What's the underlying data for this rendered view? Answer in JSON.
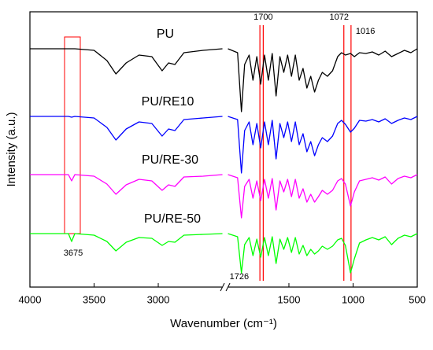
{
  "chart_data": {
    "type": "line",
    "xlabel": "Wavenumber (cm⁻¹)",
    "ylabel": "Intensity (a.u.)",
    "xlim": [
      4000,
      500
    ],
    "xbreak": [
      2500,
      1975
    ],
    "xticks": [
      4000,
      3500,
      3000,
      1500,
      1000,
      500
    ],
    "ylim": [
      0,
      350
    ],
    "x": [
      4000,
      3800,
      3700,
      3675,
      3650,
      3500,
      3400,
      3330,
      3250,
      3150,
      3050,
      2970,
      2920,
      2870,
      2800,
      2650,
      2500,
      1975,
      1900,
      1870,
      1845,
      1810,
      1780,
      1750,
      1720,
      1690,
      1660,
      1630,
      1600,
      1570,
      1540,
      1510,
      1480,
      1450,
      1420,
      1390,
      1360,
      1330,
      1300,
      1270,
      1240,
      1200,
      1160,
      1120,
      1090,
      1060,
      1020,
      990,
      950,
      900,
      850,
      800,
      750,
      700,
      650,
      600,
      550,
      500
    ],
    "series": [
      {
        "name": "PU",
        "color": "#000000",
        "values": [
          303,
          303,
          303,
          303,
          303,
          301,
          288,
          271,
          285,
          295,
          293,
          275,
          285,
          283,
          298,
          301,
          303,
          303,
          298,
          223,
          283,
          295,
          263,
          293,
          258,
          295,
          263,
          297,
          243,
          293,
          273,
          295,
          268,
          295,
          263,
          278,
          253,
          268,
          248,
          263,
          273,
          268,
          275,
          293,
          298,
          295,
          297,
          293,
          298,
          297,
          299,
          295,
          300,
          293,
          297,
          301,
          298,
          303
        ]
      },
      {
        "name": "PU/RE10",
        "color": "#0000ff",
        "values": [
          217,
          217,
          217,
          216,
          217,
          215,
          203,
          187,
          201,
          210,
          208,
          192,
          201,
          199,
          213,
          215,
          217,
          217,
          213,
          145,
          199,
          210,
          181,
          208,
          177,
          210,
          181,
          212,
          163,
          208,
          190,
          210,
          185,
          210,
          181,
          195,
          172,
          185,
          167,
          181,
          190,
          185,
          192,
          208,
          212,
          207,
          197,
          202,
          212,
          211,
          213,
          210,
          214,
          208,
          212,
          215,
          213,
          217
        ]
      },
      {
        "name": "PU/RE-30",
        "color": "#ff00ff",
        "values": [
          143,
          143,
          143,
          135,
          143,
          141,
          131,
          118,
          130,
          137,
          135,
          123,
          130,
          128,
          140,
          141,
          143,
          143,
          139,
          88,
          128,
          137,
          113,
          135,
          110,
          137,
          113,
          138,
          98,
          135,
          121,
          137,
          115,
          137,
          113,
          125,
          108,
          118,
          108,
          115,
          123,
          118,
          123,
          135,
          138,
          131,
          103,
          121,
          135,
          137,
          139,
          136,
          140,
          131,
          138,
          141,
          139,
          143
        ]
      },
      {
        "name": "PU/RE-50",
        "color": "#00ff00",
        "values": [
          68,
          68,
          68,
          58,
          68,
          66,
          58,
          46,
          57,
          63,
          62,
          53,
          58,
          57,
          66,
          67,
          68,
          68,
          64,
          18,
          54,
          63,
          40,
          61,
          38,
          63,
          40,
          64,
          30,
          61,
          48,
          63,
          44,
          63,
          42,
          53,
          40,
          48,
          42,
          46,
          52,
          48,
          52,
          60,
          62,
          53,
          18,
          36,
          56,
          60,
          63,
          60,
          64,
          54,
          62,
          66,
          64,
          68
        ]
      }
    ],
    "vlines": [
      1726,
      1700,
      1072,
      1016
    ],
    "box": 3675,
    "marker_color": "#ff0000"
  }
}
